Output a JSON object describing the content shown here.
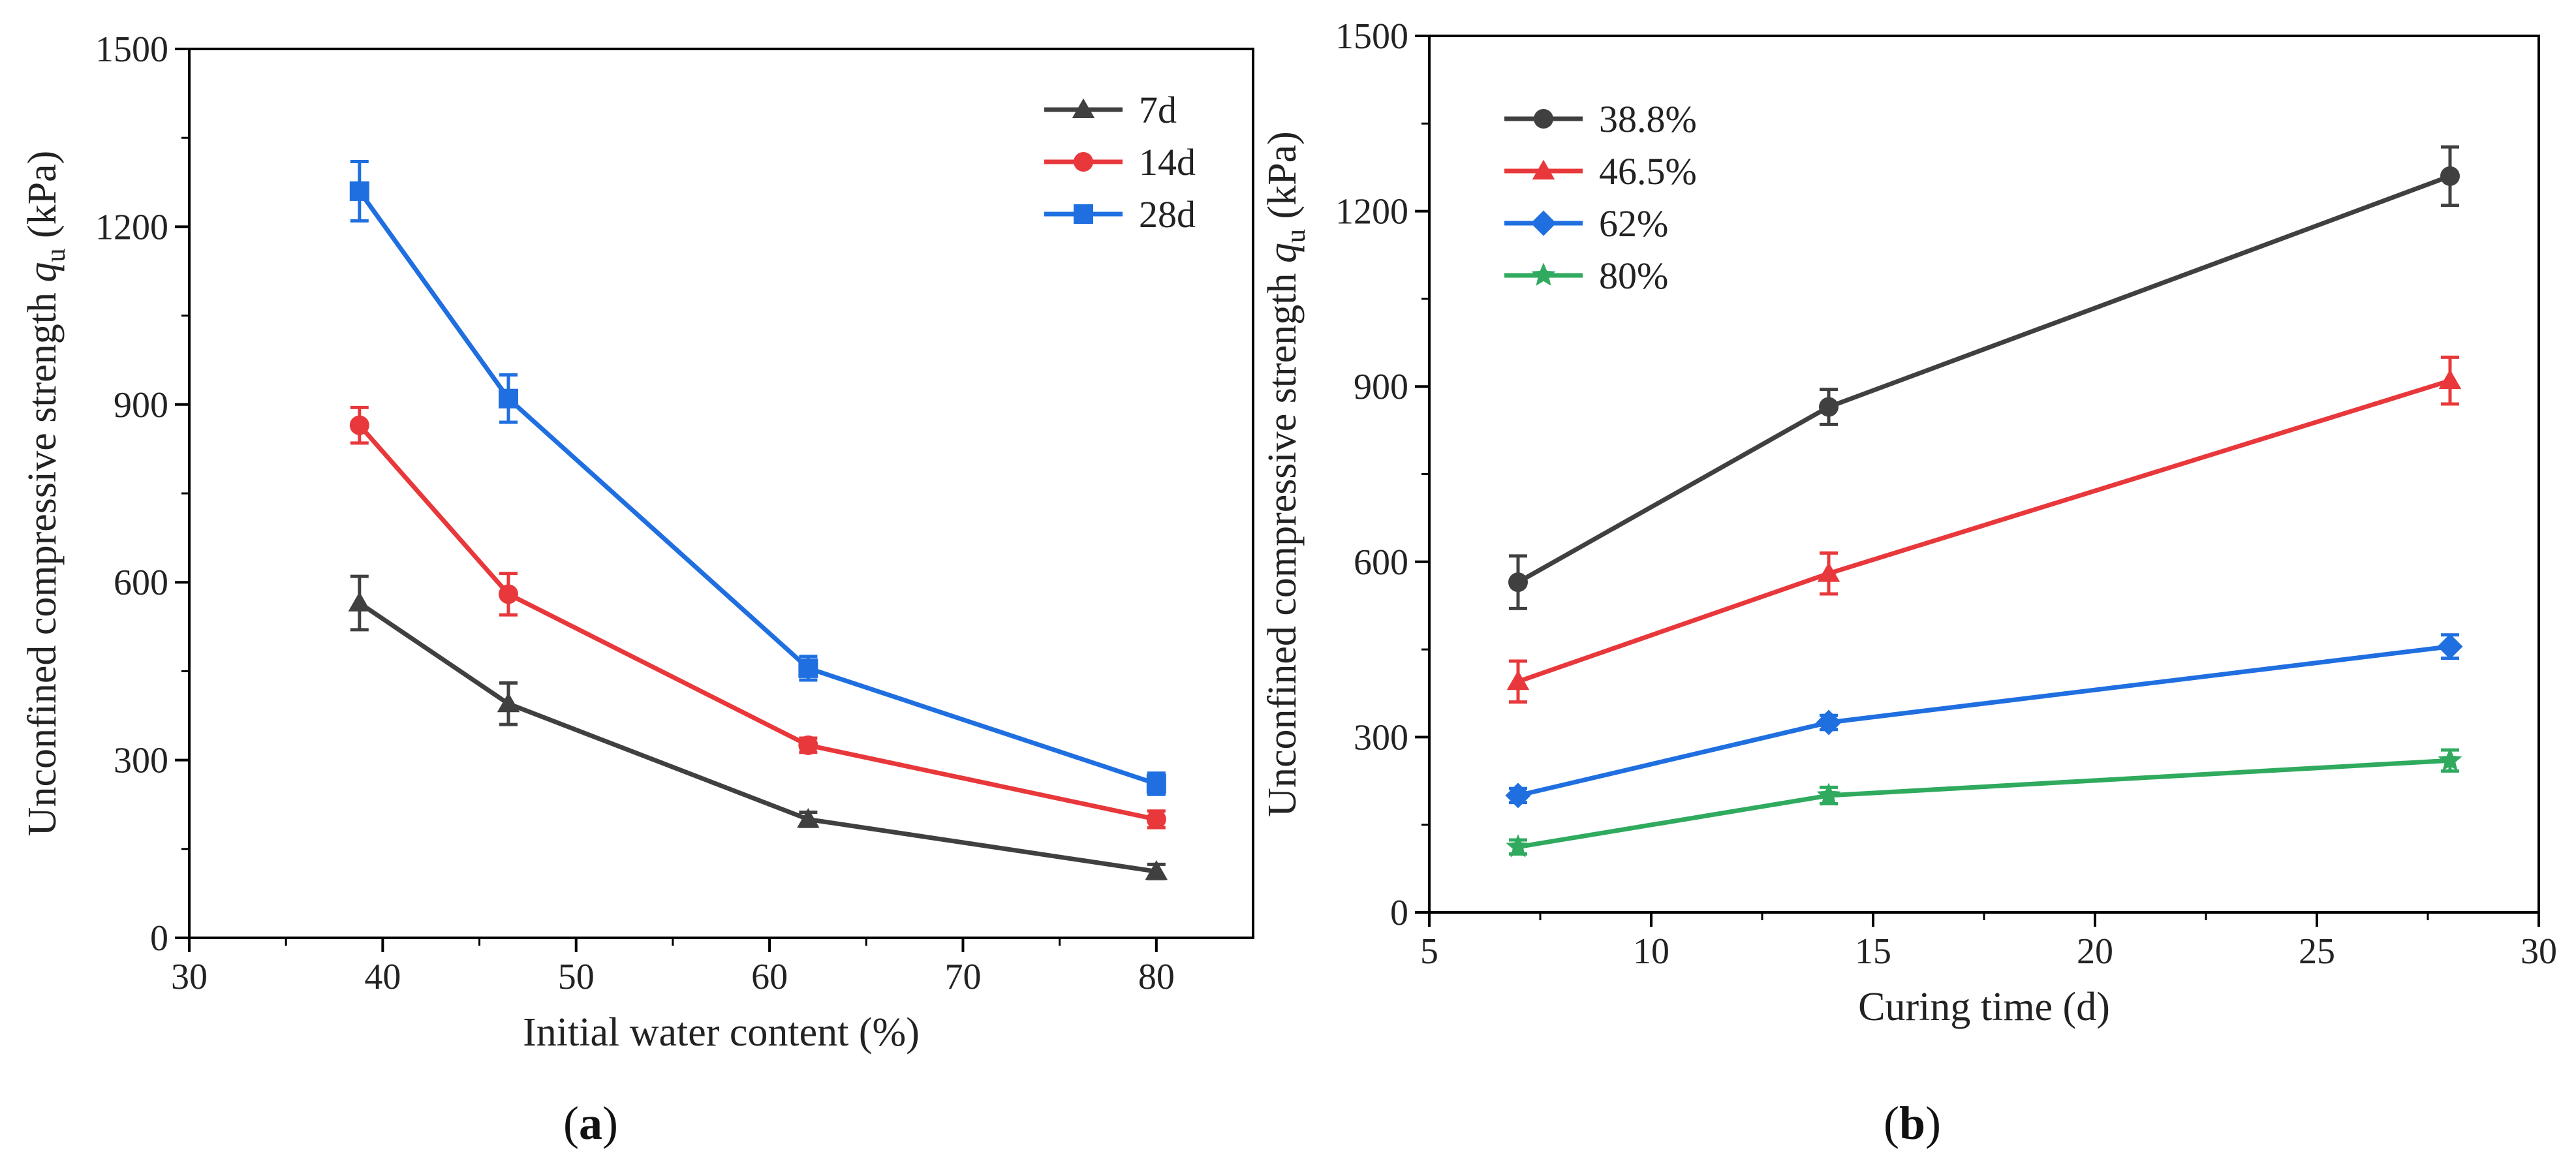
{
  "chart_data": [
    {
      "type": "line",
      "panel_label": "a",
      "title": "",
      "xlabel": "Initial water content (%)",
      "ylabel_main": "Unconfined compressive strength ",
      "ylabel_symbol": "q",
      "ylabel_sub": "u",
      "ylabel_unit": " (kPa)",
      "xlim": [
        30,
        85
      ],
      "ylim": [
        0,
        1500
      ],
      "xticks": [
        30,
        40,
        50,
        60,
        70,
        80
      ],
      "yticks": [
        0,
        300,
        600,
        900,
        1200,
        1500
      ],
      "legend_position": "top-right",
      "series": [
        {
          "name": "7d",
          "color": "#404040",
          "marker": "triangle",
          "x": [
            38.8,
            46.5,
            62,
            80
          ],
          "y": [
            565,
            395,
            200,
            112
          ],
          "err": [
            45,
            35,
            12,
            12
          ]
        },
        {
          "name": "14d",
          "color": "#e8383b",
          "marker": "circle",
          "x": [
            38.8,
            46.5,
            62,
            80
          ],
          "y": [
            865,
            580,
            325,
            200
          ],
          "err": [
            30,
            35,
            12,
            14
          ]
        },
        {
          "name": "28d",
          "color": "#1f6fe0",
          "marker": "square",
          "x": [
            38.8,
            46.5,
            62,
            80
          ],
          "y": [
            1260,
            910,
            455,
            260
          ],
          "err": [
            50,
            40,
            20,
            18
          ]
        }
      ]
    },
    {
      "type": "line",
      "panel_label": "b",
      "title": "",
      "xlabel": "Curing time (d)",
      "ylabel_main": "Unconfined compressive strength ",
      "ylabel_symbol": "q",
      "ylabel_sub": "u",
      "ylabel_unit": " (kPa)",
      "xlim": [
        5,
        30
      ],
      "ylim": [
        0,
        1500
      ],
      "xticks": [
        5,
        10,
        15,
        20,
        25,
        30
      ],
      "yticks": [
        0,
        300,
        600,
        900,
        1200,
        1500
      ],
      "legend_position": "top-left",
      "series": [
        {
          "name": "38.8%",
          "color": "#404040",
          "marker": "circle",
          "x": [
            7,
            14,
            28
          ],
          "y": [
            565,
            865,
            1260
          ],
          "err": [
            45,
            30,
            50
          ]
        },
        {
          "name": "46.5%",
          "color": "#e8383b",
          "marker": "triangle",
          "x": [
            7,
            14,
            28
          ],
          "y": [
            395,
            580,
            910
          ],
          "err": [
            35,
            35,
            40
          ]
        },
        {
          "name": "62%",
          "color": "#1f6fe0",
          "marker": "diamond",
          "x": [
            7,
            14,
            28
          ],
          "y": [
            200,
            325,
            455
          ],
          "err": [
            12,
            12,
            20
          ]
        },
        {
          "name": "80%",
          "color": "#2faa5e",
          "marker": "star",
          "x": [
            7,
            14,
            28
          ],
          "y": [
            112,
            200,
            260
          ],
          "err": [
            12,
            14,
            18
          ]
        }
      ]
    }
  ]
}
